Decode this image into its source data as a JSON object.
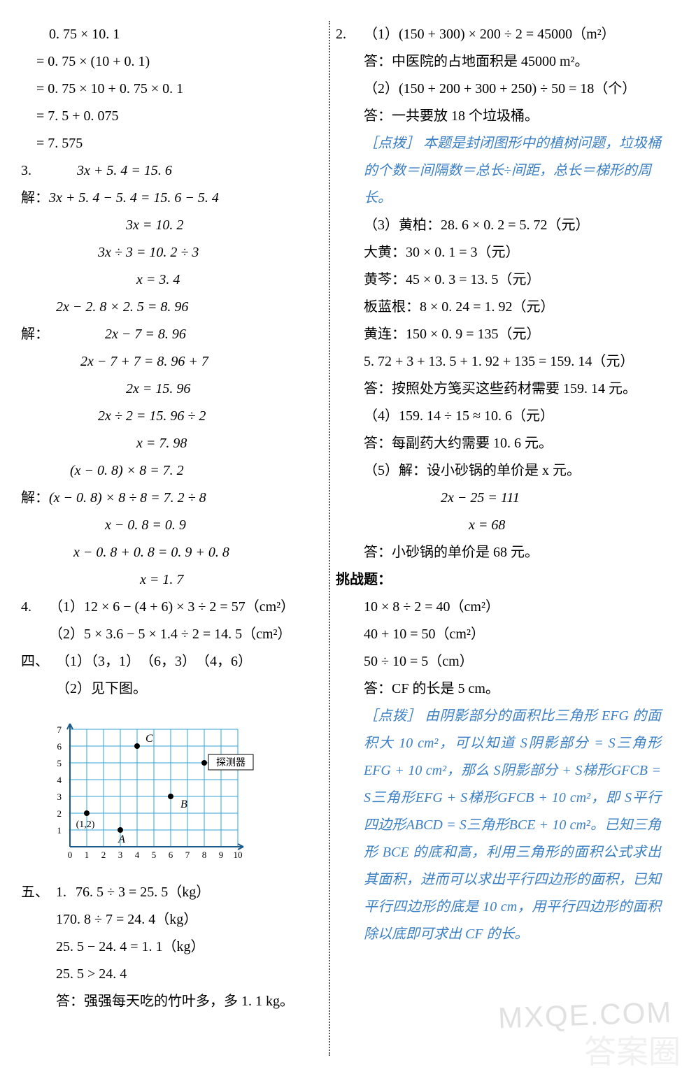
{
  "left": {
    "block1": {
      "l1": "0. 75 × 10. 1",
      "l2": "= 0. 75 × (10 + 0. 1)",
      "l3": "= 0. 75 × 10 + 0. 75 × 0. 1",
      "l4": "= 7. 5 + 0. 075",
      "l5": "= 7. 575"
    },
    "q3": {
      "num": "3.",
      "eq1": "3x + 5. 4 = 15. 6",
      "sol_label": "解：",
      "s1": "3x + 5. 4 − 5. 4 = 15. 6 − 5. 4",
      "s2": "3x = 10. 2",
      "s3": "3x ÷ 3 = 10. 2 ÷ 3",
      "s4": "x = 3. 4",
      "eq2": "2x − 2. 8 × 2. 5 = 8. 96",
      "s5": "2x − 7 = 8. 96",
      "s6": "2x − 7 + 7 = 8. 96 + 7",
      "s7": "2x = 15. 96",
      "s8": "2x ÷ 2 = 15. 96 ÷ 2",
      "s9": "x = 7. 98",
      "eq3": "(x − 0. 8) × 8 = 7. 2",
      "s10": "(x − 0. 8) × 8 ÷ 8 = 7. 2 ÷ 8",
      "s11": "x − 0. 8 = 0. 9",
      "s12": "x − 0. 8 + 0. 8 = 0. 9 + 0. 8",
      "s13": "x = 1. 7"
    },
    "q4": {
      "num": "4.",
      "p1": "（1）12 × 6 − (4 + 6) × 3 ÷ 2 = 57（cm²）",
      "p2": "（2）5 × 3.6 − 5 × 1.4 ÷ 2 = 14. 5（cm²）"
    },
    "sec4": {
      "num": "四、",
      "p1": "（1）（3，1）　（6，3）　（4，6）",
      "p2": "（2）见下图。"
    },
    "grid": {
      "x_ticks": [
        "0",
        "1",
        "2",
        "3",
        "4",
        "5",
        "6",
        "7",
        "8",
        "9",
        "10"
      ],
      "y_ticks": [
        "1",
        "2",
        "3",
        "4",
        "5",
        "6",
        "7"
      ],
      "label_A": "A",
      "A": [
        3,
        1
      ],
      "label_B": "B",
      "B": [
        6,
        3
      ],
      "label_C": "C",
      "C": [
        4,
        6
      ],
      "label_origin": "(1,2)",
      "origin_pt": [
        1,
        2
      ],
      "label_det": "探测器",
      "det_pt": [
        8,
        5
      ],
      "grid_color": "#2fa6d4",
      "axis_color": "#1a5a8a",
      "x_max": 10,
      "y_max": 7,
      "cell": 24
    },
    "sec5": {
      "num": "五、",
      "q1num": "1.",
      "l1": "76. 5 ÷ 3 = 25. 5（kg）",
      "l2": "170. 8 ÷ 7 = 24. 4（kg）",
      "l3": "25. 5 − 24. 4 = 1. 1（kg）",
      "l4": "25. 5 > 24. 4",
      "ans": "答：强强每天吃的竹叶多，多 1. 1 kg。"
    }
  },
  "right": {
    "q2": {
      "num": "2.",
      "p1": "（1）(150 + 300) × 200 ÷ 2 = 45000（m²）",
      "a1": "答：中医院的占地面积是 45000 m²。",
      "p2": "（2）(150 + 200 + 300 + 250) ÷ 50 = 18（个）",
      "a2": "答：一共要放 18 个垃圾桶。",
      "hint_label": "［点拨］",
      "hint1": "本题是封闭图形中的植树问题，垃圾桶的个数＝间隔数＝总长÷间距，总长＝梯形的周长。",
      "p3": "（3）黄柏：28. 6 × 0. 2 = 5. 72（元）",
      "p3b": "大黄：30 × 0. 1 = 3（元）",
      "p3c": "黄芩：45 × 0. 3 = 13. 5（元）",
      "p3d": "板蓝根：8 × 0. 24 = 1. 92（元）",
      "p3e": "黄连：150 × 0. 9 = 135（元）",
      "p3f": "5. 72 + 3 + 13. 5 + 1. 92 + 135 = 159. 14（元）",
      "a3": "答：按照处方笺买这些药材需要 159. 14 元。",
      "p4": "（4）159. 14 ÷ 15 ≈ 10. 6（元）",
      "a4": "答：每副药大约需要 10. 6 元。",
      "p5": "（5）解：设小砂锅的单价是 x 元。",
      "p5b": "2x − 25 = 111",
      "p5c": "x = 68",
      "a5": "答：小砂锅的单价是 68 元。"
    },
    "challenge": {
      "title": "挑战题：",
      "l1": "10 × 8 ÷ 2 = 40（cm²）",
      "l2": "40 + 10 = 50（cm²）",
      "l3": "50 ÷ 10 = 5（cm）",
      "ans": "答：CF 的长是 5 cm。",
      "hint_label": "［点拨］",
      "hint": "由阴影部分的面积比三角形 EFG 的面积大 10 cm²，可以知道 S阴影部分 = S三角形EFG + 10 cm²，那么 S阴影部分 + S梯形GFCB = S三角形EFG + S梯形GFCB + 10 cm²，即 S平行四边形ABCD = S三角形BCE + 10 cm²。已知三角形 BCE 的底和高，利用三角形的面积公式求出其面积，进而可以求出平行四边形的面积，已知平行四边形的底是 10 cm，用平行四边形的面积除以底即可求出 CF 的长。"
    }
  },
  "watermarks": {
    "w1": "MXQE.COM",
    "w2": "答案圈"
  }
}
